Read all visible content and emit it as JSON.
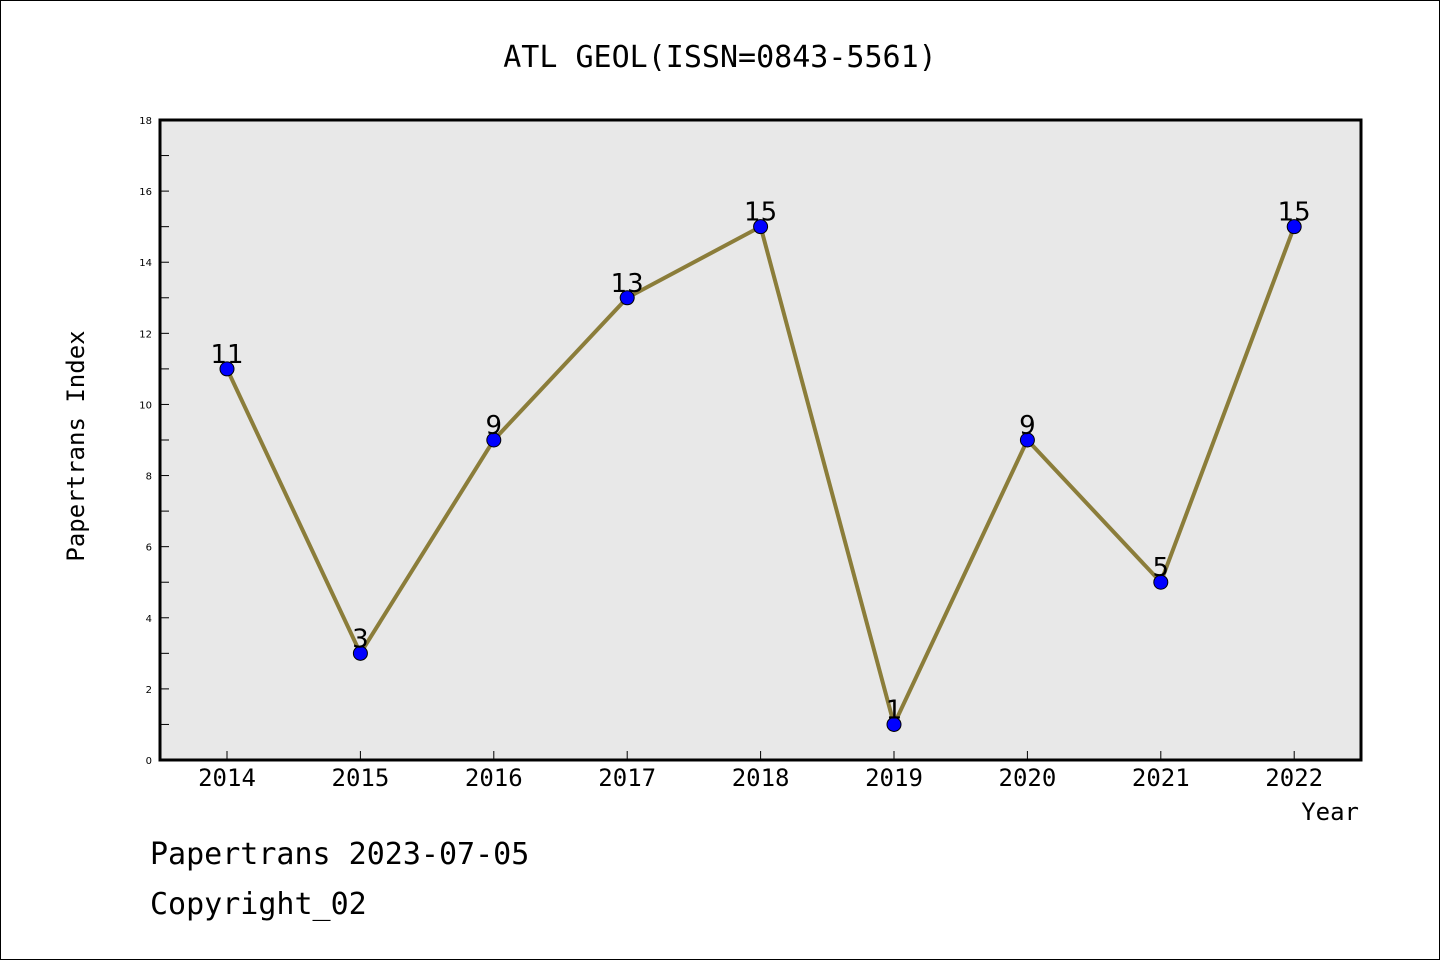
{
  "chart_data": {
    "type": "line",
    "title": "ATL GEOL(ISSN=0843-5561)",
    "xlabel": "Year",
    "ylabel": "Papertrans Index",
    "categories": [
      "2014",
      "2015",
      "2016",
      "2017",
      "2018",
      "2019",
      "2020",
      "2021",
      "2022"
    ],
    "series": [
      {
        "values": [
          11,
          3,
          9,
          13,
          15,
          1,
          9,
          5,
          15
        ]
      }
    ],
    "data_labels": [
      "11",
      "3",
      "9",
      "13",
      "15",
      "1",
      "9",
      "5",
      "15"
    ],
    "ylim": [
      0,
      18
    ],
    "yticks": [
      "0",
      "2",
      "4",
      "6",
      "8",
      "10",
      "12",
      "14",
      "16",
      "18"
    ],
    "grid": false,
    "plot_background": "#e8e8e8",
    "line_color": "#8b7d3a",
    "marker_color": "#0000ff"
  },
  "footer": {
    "line1": "Papertrans 2023-07-05",
    "line2": "Copyright_02"
  }
}
